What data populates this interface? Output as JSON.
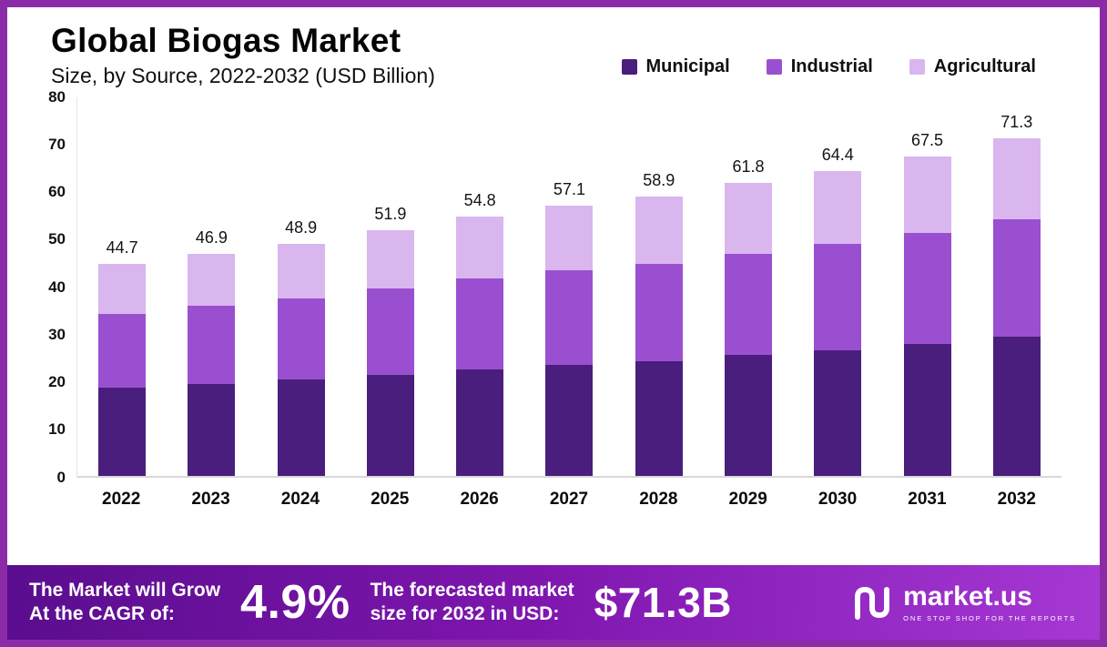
{
  "header": {
    "title": "Global Biogas Market",
    "subtitle": "Size, by Source, 2022-2032 (USD Billion)"
  },
  "legend": [
    {
      "label": "Municipal",
      "color": "#4A1E7C"
    },
    {
      "label": "Industrial",
      "color": "#9A4FD0"
    },
    {
      "label": "Agricultural",
      "color": "#D9B6EE"
    }
  ],
  "chart_data": {
    "type": "bar",
    "stacked": true,
    "title": "Global Biogas Market Size, by Source, 2022-2032 (USD Billion)",
    "xlabel": "",
    "ylabel": "USD Billion",
    "ylim": [
      0,
      80
    ],
    "yticks": [
      0,
      10,
      20,
      30,
      40,
      50,
      60,
      70,
      80
    ],
    "grid": false,
    "legend_position": "top-right",
    "categories": [
      "2022",
      "2023",
      "2024",
      "2025",
      "2026",
      "2027",
      "2028",
      "2029",
      "2030",
      "2031",
      "2032"
    ],
    "series": [
      {
        "name": "Municipal",
        "color": "#4A1E7C",
        "values": [
          18.5,
          19.3,
          20.2,
          21.3,
          22.5,
          23.4,
          24.2,
          25.4,
          26.4,
          27.8,
          29.3
        ]
      },
      {
        "name": "Industrial",
        "color": "#9A4FD0",
        "values": [
          15.6,
          16.5,
          17.2,
          18.2,
          19.1,
          19.9,
          20.6,
          21.5,
          22.5,
          23.4,
          24.8
        ]
      },
      {
        "name": "Agricultural",
        "color": "#D9B6EE",
        "values": [
          10.6,
          11.1,
          11.5,
          12.4,
          13.2,
          13.8,
          14.1,
          14.9,
          15.5,
          16.3,
          17.2
        ]
      }
    ],
    "totals": [
      44.7,
      46.9,
      48.9,
      51.9,
      54.8,
      57.1,
      58.9,
      61.8,
      64.4,
      67.5,
      71.3
    ],
    "total_labels": [
      "44.7",
      "46.9",
      "48.9",
      "51.9",
      "54.8",
      "57.1",
      "58.9",
      "61.8",
      "64.4",
      "67.5",
      "71.3"
    ]
  },
  "footer": {
    "cagr_label": "The Market will Grow\nAt the CAGR of:",
    "cagr_value": "4.9%",
    "forecast_label": "The forecasted market\nsize for 2032 in USD:",
    "forecast_value": "$71.3B",
    "brand": "market.us",
    "tagline": "ONE STOP SHOP FOR THE REPORTS"
  },
  "colors": {
    "frame_border": "#8C2BA8",
    "footer_gradient_start": "#5A0D8E",
    "footer_gradient_mid": "#7E16AE",
    "footer_gradient_end": "#A638D4",
    "axis_line": "#D8D8D8"
  }
}
